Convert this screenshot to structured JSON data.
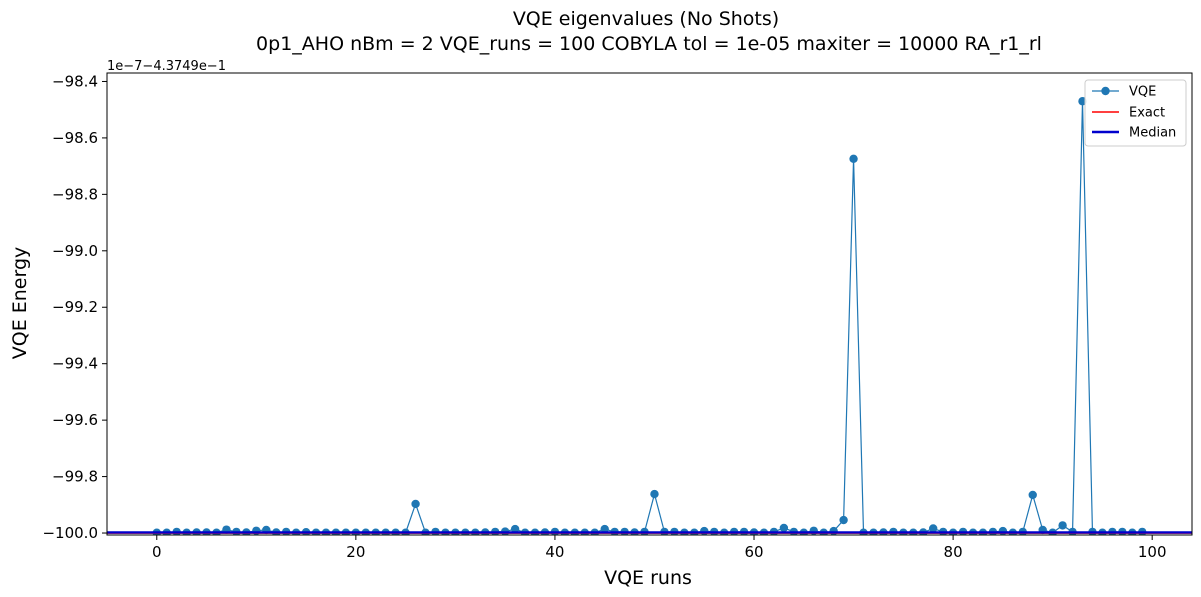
{
  "chart_data": {
    "type": "line",
    "title": "VQE eigenvalues (No Shots)",
    "subtitle": "0p1_AHO    nBm = 2    VQE_runs = 100    COBYLA    tol = 1e-05    maxiter = 10000    RA_r1_rl",
    "xlabel": "VQE runs",
    "ylabel": "VQE Energy",
    "y_offset_text": "1e−7−4.3749e−1",
    "xlim": [
      -5,
      104
    ],
    "ylim": [
      -100.007,
      -98.37
    ],
    "x_ticks": [
      0,
      20,
      40,
      60,
      80,
      100
    ],
    "x_tick_labels": [
      "0",
      "20",
      "40",
      "60",
      "80",
      "100"
    ],
    "y_ticks": [
      -100.0,
      -99.8,
      -99.6,
      -99.4,
      -99.2,
      -99.0,
      -98.8,
      -98.6,
      -98.4
    ],
    "y_tick_labels": [
      "−100.0",
      "−99.8",
      "−99.6",
      "−99.4",
      "−99.2",
      "−99.0",
      "−98.8",
      "−98.6",
      "−98.4"
    ],
    "legend_position": "top-right",
    "grid": false,
    "series": [
      {
        "name": "VQE",
        "kind": "line-marker",
        "color": "#1f77b4",
        "x": [
          0,
          1,
          2,
          3,
          4,
          5,
          6,
          7,
          8,
          9,
          10,
          11,
          12,
          13,
          14,
          15,
          16,
          17,
          18,
          19,
          20,
          21,
          22,
          23,
          24,
          25,
          26,
          27,
          28,
          29,
          30,
          31,
          32,
          33,
          34,
          35,
          36,
          37,
          38,
          39,
          40,
          41,
          42,
          43,
          44,
          45,
          46,
          47,
          48,
          49,
          50,
          51,
          52,
          53,
          54,
          55,
          56,
          57,
          58,
          59,
          60,
          61,
          62,
          63,
          64,
          65,
          66,
          67,
          68,
          69,
          70,
          71,
          72,
          73,
          74,
          75,
          76,
          77,
          78,
          79,
          80,
          81,
          82,
          83,
          84,
          85,
          86,
          87,
          88,
          89,
          90,
          91,
          92,
          93,
          94,
          95,
          96,
          97,
          98,
          99
        ],
        "y": [
          -99.999,
          -99.999,
          -99.996,
          -99.999,
          -99.998,
          -99.998,
          -99.999,
          -99.988,
          -99.996,
          -99.998,
          -99.992,
          -99.989,
          -99.998,
          -99.996,
          -99.999,
          -99.997,
          -99.999,
          -99.999,
          -99.999,
          -99.999,
          -99.999,
          -99.999,
          -99.999,
          -99.999,
          -99.999,
          -99.999,
          -99.897,
          -99.999,
          -99.996,
          -99.999,
          -99.999,
          -99.999,
          -99.999,
          -99.998,
          -99.996,
          -99.995,
          -99.986,
          -99.999,
          -99.999,
          -99.998,
          -99.996,
          -99.999,
          -99.999,
          -99.999,
          -99.999,
          -99.986,
          -99.996,
          -99.996,
          -99.998,
          -99.996,
          -99.862,
          -99.996,
          -99.996,
          -99.999,
          -99.999,
          -99.993,
          -99.996,
          -99.999,
          -99.996,
          -99.996,
          -99.998,
          -99.999,
          -99.996,
          -99.982,
          -99.996,
          -99.999,
          -99.992,
          -99.999,
          -99.993,
          -99.954,
          -98.674,
          -99.999,
          -99.999,
          -99.998,
          -99.996,
          -99.999,
          -99.999,
          -99.998,
          -99.984,
          -99.996,
          -99.999,
          -99.996,
          -99.999,
          -99.999,
          -99.996,
          -99.993,
          -99.999,
          -99.996,
          -99.865,
          -99.989,
          -99.999,
          -99.973,
          -99.996,
          -98.47,
          -99.996,
          -99.999,
          -99.996,
          -99.996,
          -99.999,
          -99.996
        ]
      },
      {
        "name": "Exact",
        "kind": "hline",
        "color": "#ff0000",
        "value": -100.0
      },
      {
        "name": "Median",
        "kind": "hline",
        "color": "#0000cd",
        "value": -99.998
      }
    ]
  }
}
